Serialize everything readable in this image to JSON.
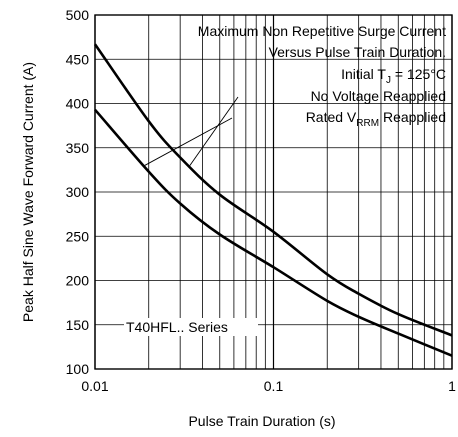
{
  "chart_data": {
    "type": "line",
    "xscale": "log",
    "xlim": [
      0.01,
      1
    ],
    "ylim": [
      100,
      500
    ],
    "grid": true,
    "xlabel": "Pulse Train Duration (s)",
    "ylabel": "Peak Half Sine Wave Forward Current (A)",
    "xticks": [
      0.01,
      0.1,
      1
    ],
    "xtick_labels": [
      "0.01",
      "0.1",
      "1"
    ],
    "yticks": [
      100,
      150,
      200,
      250,
      300,
      350,
      400,
      450,
      500
    ],
    "ytick_labels": [
      "100",
      "150",
      "200",
      "250",
      "300",
      "350",
      "400",
      "450",
      "500"
    ],
    "annotation": {
      "line1": "Maximum Non Repetitive Surge Current",
      "line2": "Versus Pulse Train Duration.",
      "line3_prefix": "Initial T",
      "line3_sub": "J",
      "line3_suffix": " = 125°C"
    },
    "series": [
      {
        "name": "No Voltage Reapplied",
        "x": [
          0.01,
          0.02,
          0.03,
          0.05,
          0.1,
          0.2,
          0.3,
          0.5,
          1
        ],
        "y": [
          467,
          380,
          339,
          297,
          255,
          207,
          185,
          162,
          138
        ]
      },
      {
        "name": "Rated VRRM Reapplied",
        "label_prefix": "Rated V",
        "label_sub": "RRM",
        "label_suffix": " Reapplied",
        "x": [
          0.01,
          0.02,
          0.03,
          0.05,
          0.1,
          0.2,
          0.3,
          0.5,
          1
        ],
        "y": [
          393,
          323,
          287,
          252,
          215,
          177,
          159,
          140,
          115
        ]
      }
    ],
    "series_label": "T40HFL.. Series"
  }
}
